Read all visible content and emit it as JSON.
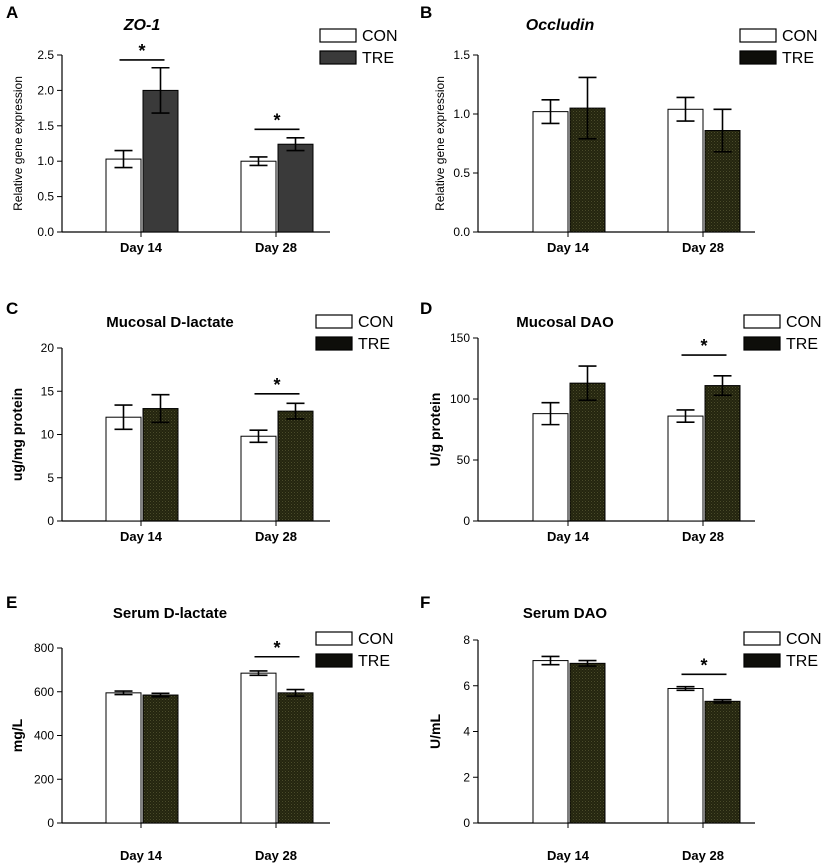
{
  "legend": {
    "con_label": "CON",
    "tre_label": "TRE"
  },
  "colors": {
    "con_fill": "#ffffff",
    "tre_dark": "#3a3a3a",
    "tre_olive": "#2a2b18",
    "axis": "#000000"
  },
  "chart_data": [
    {
      "letter": "A",
      "type": "bar",
      "title": "ZO-1",
      "title_italic": true,
      "ylabel": "Relative gene expression",
      "ylabel_bold": false,
      "categories": [
        "Day 14",
        "Day 28"
      ],
      "ylim": [
        0,
        2.5
      ],
      "yticks": [
        "0.0",
        "0.5",
        "1.0",
        "1.5",
        "2.0",
        "2.5"
      ],
      "tre_style": "dark",
      "series": [
        {
          "name": "CON",
          "values": [
            1.03,
            1.0
          ],
          "errors": [
            0.12,
            0.06
          ]
        },
        {
          "name": "TRE",
          "values": [
            2.0,
            1.24
          ],
          "errors": [
            0.32,
            0.09
          ]
        }
      ],
      "significance": [
        {
          "category": 0,
          "height": 2.43,
          "mark": "*"
        },
        {
          "category": 1,
          "height": 1.45,
          "mark": "*"
        }
      ]
    },
    {
      "letter": "B",
      "type": "bar",
      "title": "Occludin",
      "title_italic": true,
      "ylabel": "Relative gene expression",
      "ylabel_bold": false,
      "categories": [
        "Day 14",
        "Day 28"
      ],
      "ylim": [
        0,
        1.5
      ],
      "yticks": [
        "0.0",
        "0.5",
        "1.0",
        "1.5"
      ],
      "tre_style": "olive",
      "series": [
        {
          "name": "CON",
          "values": [
            1.02,
            1.04
          ],
          "errors": [
            0.1,
            0.1
          ]
        },
        {
          "name": "TRE",
          "values": [
            1.05,
            0.86
          ],
          "errors": [
            0.26,
            0.18
          ]
        }
      ],
      "significance": []
    },
    {
      "letter": "C",
      "type": "bar",
      "title": "Mucosal D-lactate",
      "title_italic": false,
      "ylabel": "ug/mg protein",
      "ylabel_bold": true,
      "categories": [
        "Day 14",
        "Day 28"
      ],
      "ylim": [
        0,
        20
      ],
      "yticks": [
        "0",
        "5",
        "10",
        "15",
        "20"
      ],
      "tre_style": "olive",
      "series": [
        {
          "name": "CON",
          "values": [
            12.0,
            9.8
          ],
          "errors": [
            1.4,
            0.7
          ]
        },
        {
          "name": "TRE",
          "values": [
            13.0,
            12.7
          ],
          "errors": [
            1.6,
            0.9
          ]
        }
      ],
      "significance": [
        {
          "category": 1,
          "height": 14.7,
          "mark": "*"
        }
      ]
    },
    {
      "letter": "D",
      "type": "bar",
      "title": "Mucosal DAO",
      "title_italic": false,
      "ylabel": "U/g protein",
      "ylabel_bold": true,
      "categories": [
        "Day 14",
        "Day 28"
      ],
      "ylim": [
        0,
        150
      ],
      "yticks": [
        "0",
        "50",
        "100",
        "150"
      ],
      "tre_style": "olive",
      "series": [
        {
          "name": "CON",
          "values": [
            88,
            86
          ],
          "errors": [
            9,
            5
          ]
        },
        {
          "name": "TRE",
          "values": [
            113,
            111
          ],
          "errors": [
            14,
            8
          ]
        }
      ],
      "significance": [
        {
          "category": 1,
          "height": 136,
          "mark": "*"
        }
      ]
    },
    {
      "letter": "E",
      "type": "bar",
      "title": "Serum D-lactate",
      "title_italic": false,
      "ylabel": "mg/L",
      "ylabel_bold": true,
      "categories": [
        "Day 14",
        "Day 28"
      ],
      "ylim": [
        0,
        800
      ],
      "yticks": [
        "0",
        "200",
        "400",
        "600",
        "800"
      ],
      "tre_style": "olive",
      "series": [
        {
          "name": "CON",
          "values": [
            595,
            685
          ],
          "errors": [
            8,
            10
          ]
        },
        {
          "name": "TRE",
          "values": [
            585,
            595
          ],
          "errors": [
            8,
            15
          ]
        }
      ],
      "significance": [
        {
          "category": 1,
          "height": 760,
          "mark": "*"
        }
      ]
    },
    {
      "letter": "F",
      "type": "bar",
      "title": "Serum DAO",
      "title_italic": false,
      "ylabel": "U/mL",
      "ylabel_bold": true,
      "categories": [
        "Day 14",
        "Day 28"
      ],
      "ylim": [
        0,
        8
      ],
      "yticks": [
        "0",
        "2",
        "4",
        "6",
        "8"
      ],
      "tre_style": "olive",
      "series": [
        {
          "name": "CON",
          "values": [
            7.1,
            5.88
          ],
          "errors": [
            0.18,
            0.08
          ]
        },
        {
          "name": "TRE",
          "values": [
            6.98,
            5.32
          ],
          "errors": [
            0.12,
            0.07
          ]
        }
      ],
      "significance": [
        {
          "category": 1,
          "height": 6.5,
          "mark": "*"
        }
      ]
    }
  ]
}
